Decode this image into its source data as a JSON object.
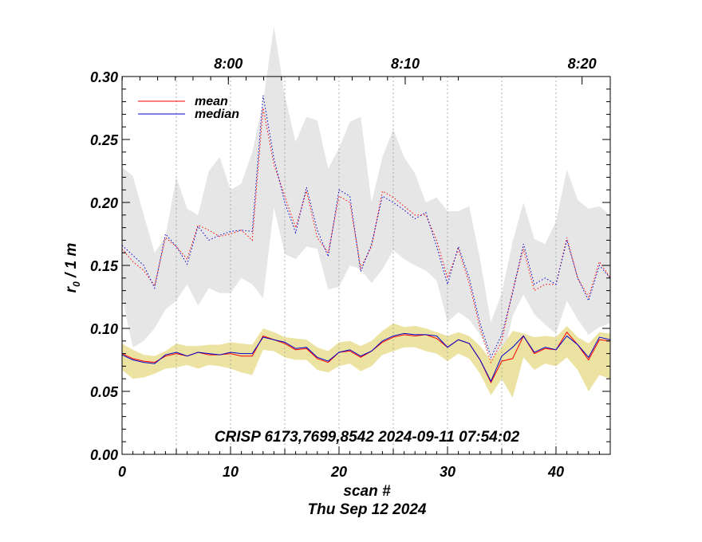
{
  "chart_data": {
    "type": "line",
    "xlabel": "scan #",
    "subtitle": "Thu Sep 12 2024",
    "ylabel_main": "r",
    "ylabel_sub": "0",
    "ylabel_tail": " / 1 m",
    "annotation": "CRISP 6173,7699,8542 2024-09-11 07:54:02",
    "xlim": [
      0,
      45
    ],
    "ylim": [
      0.0,
      0.3
    ],
    "x_ticks": [
      0,
      10,
      20,
      30,
      40
    ],
    "x_tick_labels": [
      "0",
      "10",
      "20",
      "30",
      "40"
    ],
    "y_ticks": [
      0.0,
      0.05,
      0.1,
      0.15,
      0.2,
      0.25,
      0.3
    ],
    "y_tick_labels": [
      "0.00",
      "0.05",
      "0.10",
      "0.15",
      "0.20",
      "0.25",
      "0.30"
    ],
    "vgrid_x": [
      5,
      10,
      15,
      20,
      25,
      30,
      35,
      40
    ],
    "top_time_ticks": [
      {
        "x": 9.8,
        "label": "8:00"
      },
      {
        "x": 26.1,
        "label": "8:10"
      },
      {
        "x": 42.4,
        "label": "8:20"
      }
    ],
    "legend": [
      {
        "name": "mean",
        "color": "#ff0000"
      },
      {
        "name": "median",
        "color": "#0000cc"
      }
    ],
    "colors": {
      "upper_band": "#e6e6e6",
      "lower_band": "#ece3a2",
      "mean": "#ff0000",
      "median": "#0000cc"
    },
    "series": [
      {
        "name": "upper band max",
        "values": [
          0.228,
          0.221,
          0.19,
          0.16,
          0.173,
          0.22,
          0.195,
          0.19,
          0.225,
          0.236,
          0.21,
          0.215,
          0.24,
          0.28,
          0.34,
          0.285,
          0.248,
          0.268,
          0.265,
          0.227,
          0.243,
          0.264,
          0.268,
          0.2,
          0.236,
          0.258,
          0.236,
          0.223,
          0.2,
          0.204,
          0.193,
          0.193,
          0.197,
          0.155,
          0.105,
          0.128,
          0.169,
          0.2,
          0.171,
          0.167,
          0.185,
          0.226,
          0.202,
          0.195,
          0.197,
          0.19
        ]
      },
      {
        "name": "upper band min",
        "values": [
          0.125,
          0.085,
          0.09,
          0.1,
          0.115,
          0.122,
          0.135,
          0.118,
          0.132,
          0.128,
          0.128,
          0.14,
          0.135,
          0.124,
          0.196,
          0.159,
          0.155,
          0.165,
          0.163,
          0.131,
          0.133,
          0.15,
          0.147,
          0.136,
          0.147,
          0.162,
          0.155,
          0.15,
          0.146,
          0.138,
          0.105,
          0.113,
          0.107,
          0.095,
          0.078,
          0.071,
          0.11,
          0.127,
          0.111,
          0.103,
          0.096,
          0.122,
          0.107,
          0.095,
          0.101,
          0.104
        ]
      },
      {
        "name": "dotted mean",
        "color": "#ff0000",
        "style": "dotted",
        "values": [
          0.163,
          0.153,
          0.146,
          0.134,
          0.172,
          0.165,
          0.155,
          0.182,
          0.178,
          0.173,
          0.175,
          0.178,
          0.17,
          0.275,
          0.23,
          0.205,
          0.18,
          0.209,
          0.172,
          0.16,
          0.205,
          0.2,
          0.148,
          0.165,
          0.209,
          0.204,
          0.197,
          0.19,
          0.19,
          0.17,
          0.14,
          0.163,
          0.136,
          0.1,
          0.073,
          0.09,
          0.13,
          0.163,
          0.13,
          0.135,
          0.135,
          0.172,
          0.14,
          0.125,
          0.153,
          0.14
        ]
      },
      {
        "name": "dotted median",
        "color": "#0000cc",
        "style": "dotted",
        "values": [
          0.166,
          0.158,
          0.15,
          0.132,
          0.175,
          0.165,
          0.151,
          0.181,
          0.17,
          0.174,
          0.177,
          0.178,
          0.177,
          0.285,
          0.235,
          0.2,
          0.176,
          0.212,
          0.178,
          0.157,
          0.21,
          0.205,
          0.145,
          0.167,
          0.205,
          0.2,
          0.194,
          0.187,
          0.192,
          0.165,
          0.135,
          0.165,
          0.14,
          0.104,
          0.077,
          0.095,
          0.128,
          0.167,
          0.135,
          0.14,
          0.135,
          0.17,
          0.14,
          0.122,
          0.15,
          0.14
        ]
      },
      {
        "name": "lower band max",
        "values": [
          0.088,
          0.083,
          0.079,
          0.078,
          0.082,
          0.088,
          0.086,
          0.086,
          0.087,
          0.087,
          0.089,
          0.088,
          0.087,
          0.1,
          0.097,
          0.093,
          0.092,
          0.091,
          0.085,
          0.082,
          0.089,
          0.09,
          0.086,
          0.09,
          0.098,
          0.104,
          0.101,
          0.102,
          0.1,
          0.097,
          0.094,
          0.097,
          0.094,
          0.086,
          0.075,
          0.085,
          0.098,
          0.096,
          0.093,
          0.094,
          0.093,
          0.102,
          0.093,
          0.088,
          0.097,
          0.096
        ]
      },
      {
        "name": "lower band min",
        "values": [
          0.067,
          0.06,
          0.061,
          0.064,
          0.068,
          0.069,
          0.071,
          0.068,
          0.071,
          0.07,
          0.068,
          0.065,
          0.063,
          0.083,
          0.082,
          0.077,
          0.075,
          0.075,
          0.067,
          0.065,
          0.07,
          0.072,
          0.066,
          0.07,
          0.079,
          0.082,
          0.085,
          0.085,
          0.082,
          0.08,
          0.074,
          0.08,
          0.076,
          0.064,
          0.047,
          0.06,
          0.045,
          0.077,
          0.067,
          0.072,
          0.07,
          0.077,
          0.067,
          0.05,
          0.063,
          0.06
        ]
      },
      {
        "name": "mean",
        "color": "#ff0000",
        "style": "solid",
        "values": [
          0.08,
          0.076,
          0.074,
          0.073,
          0.078,
          0.08,
          0.078,
          0.081,
          0.079,
          0.079,
          0.08,
          0.078,
          0.078,
          0.094,
          0.091,
          0.088,
          0.083,
          0.084,
          0.076,
          0.073,
          0.081,
          0.082,
          0.077,
          0.082,
          0.089,
          0.093,
          0.095,
          0.094,
          0.095,
          0.092,
          0.085,
          0.091,
          0.088,
          0.075,
          0.057,
          0.074,
          0.076,
          0.094,
          0.08,
          0.084,
          0.083,
          0.097,
          0.087,
          0.075,
          0.091,
          0.09
        ]
      },
      {
        "name": "median",
        "color": "#0000cc",
        "style": "solid",
        "values": [
          0.079,
          0.075,
          0.073,
          0.072,
          0.079,
          0.081,
          0.078,
          0.081,
          0.08,
          0.079,
          0.081,
          0.08,
          0.08,
          0.093,
          0.091,
          0.089,
          0.084,
          0.085,
          0.077,
          0.074,
          0.081,
          0.083,
          0.078,
          0.082,
          0.09,
          0.094,
          0.096,
          0.095,
          0.095,
          0.094,
          0.085,
          0.091,
          0.088,
          0.075,
          0.058,
          0.078,
          0.085,
          0.094,
          0.081,
          0.085,
          0.083,
          0.094,
          0.087,
          0.077,
          0.093,
          0.091
        ]
      }
    ]
  }
}
